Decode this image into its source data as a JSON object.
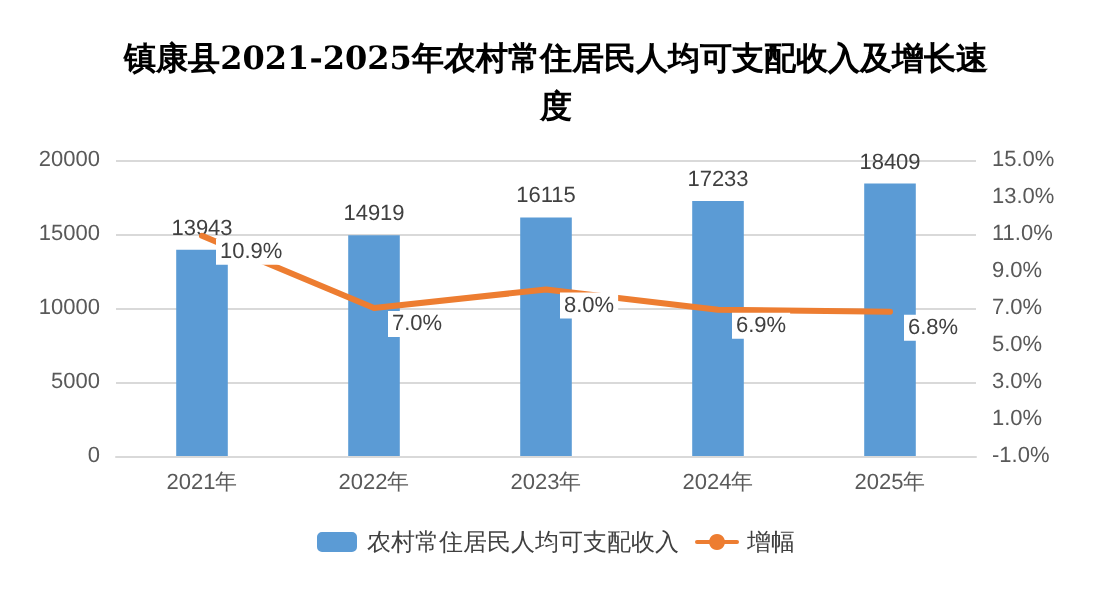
{
  "chart_data": {
    "type": "bar",
    "title": "镇康县2021-2025年农村常住居民人均可支配收入及增长速度",
    "categories": [
      "2021年",
      "2022年",
      "2023年",
      "2024年",
      "2025年"
    ],
    "series": [
      {
        "name": "农村常住居民人均可支配收入",
        "color": "#5b9bd5",
        "values": [
          13943,
          14919,
          16115,
          17233,
          18409
        ],
        "value_labels": [
          "13943",
          "14919",
          "16115",
          "17233",
          "18409"
        ]
      },
      {
        "name": "增幅",
        "type": "line",
        "axis": "y2",
        "color": "#ed7d31",
        "values": [
          10.9,
          7.0,
          8.0,
          6.9,
          6.8
        ],
        "value_labels": [
          "10.9%",
          "7.0%",
          "8.0%",
          "6.9%",
          "6.8%"
        ]
      }
    ],
    "ylim": [
      0,
      20000
    ],
    "yticks": [
      0,
      5000,
      10000,
      15000,
      20000
    ],
    "y2lim": [
      -1,
      15
    ],
    "y2ticks": [
      {
        "value": -1,
        "label": "-1.0%"
      },
      {
        "value": 1,
        "label": "1.0%"
      },
      {
        "value": 3,
        "label": "3.0%"
      },
      {
        "value": 5,
        "label": "5.0%"
      },
      {
        "value": 7,
        "label": "7.0%"
      },
      {
        "value": 9,
        "label": "9.0%"
      },
      {
        "value": 11,
        "label": "11.0%"
      },
      {
        "value": 13,
        "label": "13.0%"
      },
      {
        "value": 15,
        "label": "15.0%"
      }
    ],
    "grid": "y",
    "legend": "bottom",
    "marker": "none",
    "line_style": "solid"
  }
}
